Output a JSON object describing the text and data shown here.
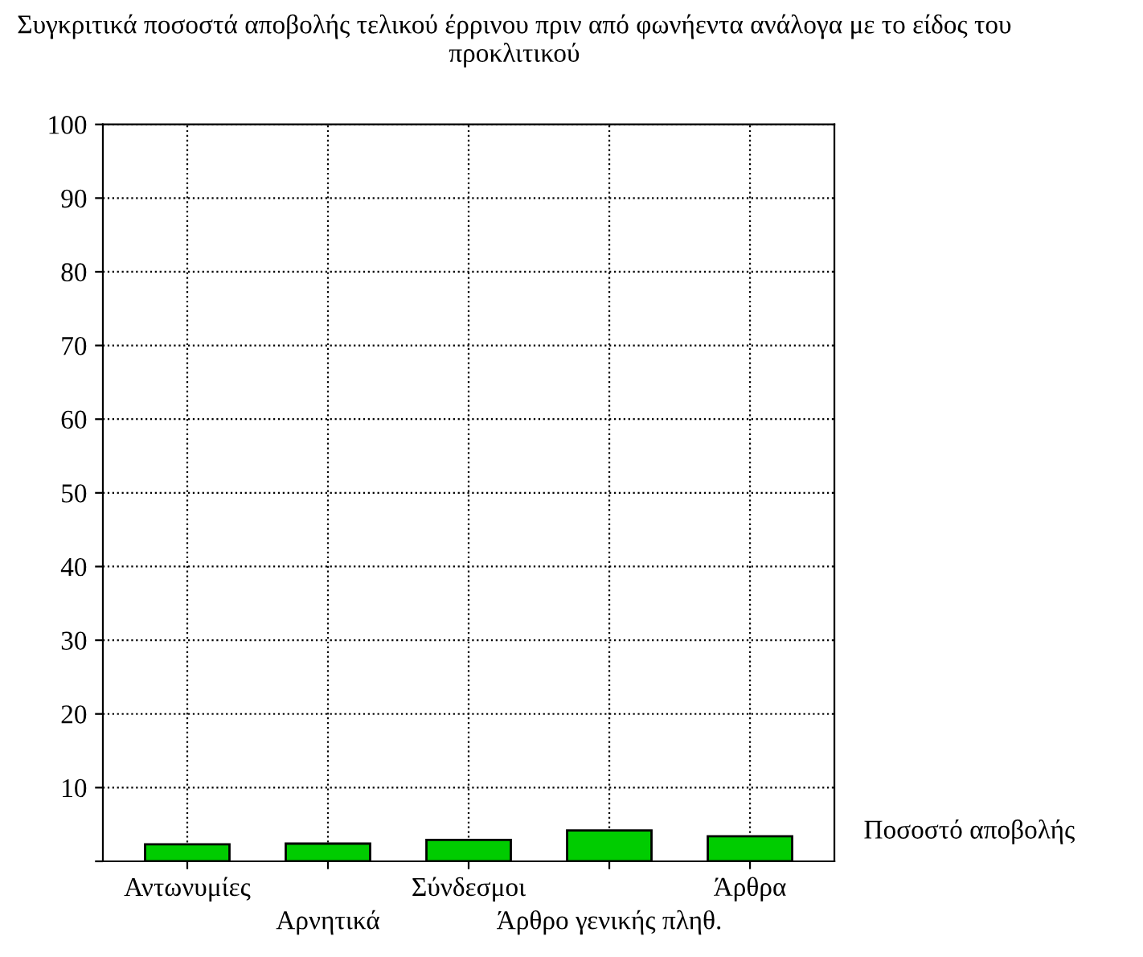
{
  "chart_data": {
    "type": "bar",
    "title": "Συγκριτικά ποσοστά αποβολής τελικού έρρινου πριν από φωνήεντα ανάλογα με το είδος του προκλιτικού",
    "categories": [
      "Αντωνυμίες",
      "Αρνητικά",
      "Σύνδεσμοι",
      "Άρθρο γενικής πληθ.",
      "Άρθρα"
    ],
    "series": [
      {
        "name": "Ποσοστό αποβολής",
        "color": "#00cc00",
        "values": [
          2.3,
          2.4,
          2.9,
          4.2,
          3.4
        ]
      }
    ],
    "ylim": [
      0,
      100
    ],
    "yticks": [
      {
        "value": 0,
        "label": null
      },
      10,
      20,
      30,
      40,
      50,
      60,
      70,
      80,
      90,
      100
    ],
    "grid": true
  }
}
